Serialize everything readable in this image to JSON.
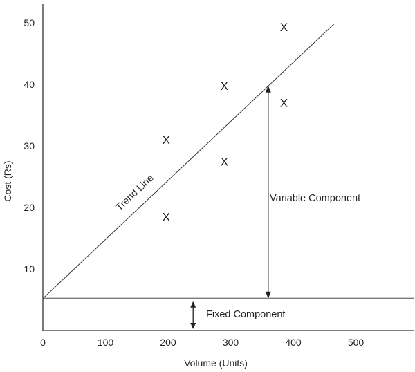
{
  "chart_data": {
    "type": "scatter",
    "title": "",
    "xlabel": "Volume (Units)",
    "ylabel": "Cost (Rs)",
    "xlim": [
      0,
      600
    ],
    "ylim": [
      0,
      55
    ],
    "x_ticks": [
      0,
      100,
      200,
      300,
      400,
      500
    ],
    "y_ticks": [
      10,
      20,
      30,
      40,
      50
    ],
    "grid": false,
    "marker": "X",
    "points": [
      {
        "x": 197,
        "y": 18.5
      },
      {
        "x": 197,
        "y": 31
      },
      {
        "x": 290,
        "y": 27.5
      },
      {
        "x": 290,
        "y": 39.8
      },
      {
        "x": 385,
        "y": 37
      },
      {
        "x": 385,
        "y": 49.3
      }
    ],
    "fixed_cost": 5.2,
    "trend_line": {
      "label": "Trend Line",
      "x": [
        0,
        465
      ],
      "y": [
        5.2,
        49.8
      ]
    },
    "annotations": [
      {
        "label": "Variable Component",
        "x": 360,
        "y_from": 5.2,
        "y_to": 39.8
      },
      {
        "label": "Fixed Component",
        "x": 240,
        "y_from": 0,
        "y_to": 5.2
      }
    ]
  }
}
